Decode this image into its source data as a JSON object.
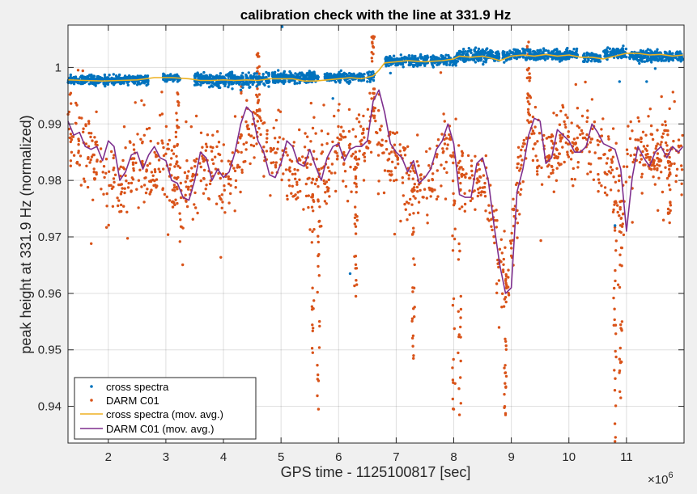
{
  "chart_data": {
    "type": "scatter",
    "title": "calibration check with the line at 331.9 Hz",
    "xlabel": "GPS time - 1125100817 [sec]",
    "ylabel": "peak height at 331.9 Hz (normalized)",
    "x_exponent_label": "×10",
    "x_exponent_power": "6",
    "xlim": [
      1.3,
      12.0
    ],
    "ylim": [
      0.9335,
      1.0075
    ],
    "xticks": [
      2,
      3,
      4,
      5,
      6,
      7,
      8,
      9,
      10,
      11
    ],
    "yticks": [
      0.94,
      0.95,
      0.96,
      0.97,
      0.98,
      0.99,
      1
    ],
    "xtick_labels": [
      "2",
      "3",
      "4",
      "5",
      "6",
      "7",
      "8",
      "9",
      "10",
      "11"
    ],
    "ytick_labels": [
      "0.94",
      "0.95",
      "0.96",
      "0.97",
      "0.98",
      "0.99",
      "1"
    ],
    "grid": true,
    "legend_position": "bottom-left",
    "colors": {
      "cross_spectra": "#0072bd",
      "darm_c01": "#d95319",
      "cross_spectra_avg": "#edb120",
      "darm_c01_avg": "#7e2f8e"
    },
    "series": [
      {
        "name": "cross spectra",
        "style": "points",
        "segments": [
          {
            "from": 1.3,
            "to": 2.7,
            "level": 0.9978,
            "spread": 0.0007
          },
          {
            "from": 2.95,
            "to": 3.25,
            "level": 0.9982,
            "spread": 0.0006
          },
          {
            "from": 3.5,
            "to": 4.8,
            "level": 0.9978,
            "spread": 0.001
          },
          {
            "from": 4.85,
            "to": 5.65,
            "level": 0.9982,
            "spread": 0.0008
          },
          {
            "from": 5.75,
            "to": 6.45,
            "level": 0.9983,
            "spread": 0.0007
          },
          {
            "from": 6.5,
            "to": 6.62,
            "level": 0.9985,
            "spread": 0.0008
          },
          {
            "from": 6.8,
            "to": 7.55,
            "level": 1.0012,
            "spread": 0.0008
          },
          {
            "from": 7.6,
            "to": 8.05,
            "level": 1.0012,
            "spread": 0.0008
          },
          {
            "from": 8.05,
            "to": 8.8,
            "level": 1.0022,
            "spread": 0.0009
          },
          {
            "from": 8.85,
            "to": 10.15,
            "level": 1.0022,
            "spread": 0.0008
          },
          {
            "from": 10.25,
            "to": 10.55,
            "level": 1.0018,
            "spread": 0.0007
          },
          {
            "from": 10.6,
            "to": 11.0,
            "level": 1.0025,
            "spread": 0.0008
          },
          {
            "from": 11.05,
            "to": 11.98,
            "level": 1.002,
            "spread": 0.0008
          }
        ],
        "outliers": [
          [
            2.6,
            0.9975
          ],
          [
            3.5,
            0.9985
          ],
          [
            4.3,
            0.996
          ],
          [
            4.42,
            0.9972
          ],
          [
            5.02,
            1.0072
          ],
          [
            5.28,
            0.9972
          ],
          [
            5.9,
            0.9945
          ],
          [
            6.2,
            0.9635
          ],
          [
            6.5,
            0.9975
          ],
          [
            6.9,
            0.999
          ],
          [
            10.8,
            0.972
          ],
          [
            10.88,
            0.9975
          ],
          [
            11.35,
            0.9975
          ],
          [
            11.5,
            0.9998
          ]
        ]
      },
      {
        "name": "DARM C01",
        "style": "points",
        "anchors": [
          [
            1.3,
            0.99
          ],
          [
            1.45,
            0.988
          ],
          [
            1.6,
            0.986
          ],
          [
            1.8,
            0.984
          ],
          [
            2.0,
            0.98
          ],
          [
            2.2,
            0.979
          ],
          [
            2.4,
            0.982
          ],
          [
            2.6,
            0.983
          ],
          [
            2.8,
            0.981
          ],
          [
            3.0,
            0.984
          ],
          [
            3.2,
            0.978
          ],
          [
            3.4,
            0.977
          ],
          [
            3.6,
            0.982
          ],
          [
            3.8,
            0.983
          ],
          [
            4.0,
            0.98
          ],
          [
            4.2,
            0.982
          ],
          [
            4.45,
            0.989
          ],
          [
            4.6,
            0.991
          ],
          [
            4.8,
            0.983
          ],
          [
            5.0,
            0.985
          ],
          [
            5.2,
            0.98
          ],
          [
            5.4,
            0.984
          ],
          [
            5.6,
            0.983
          ],
          [
            5.8,
            0.981
          ],
          [
            6.0,
            0.986
          ],
          [
            6.2,
            0.984
          ],
          [
            6.45,
            0.987
          ],
          [
            6.6,
            0.992
          ],
          [
            6.8,
            0.986
          ],
          [
            7.0,
            0.983
          ],
          [
            7.2,
            0.981
          ],
          [
            7.4,
            0.978
          ],
          [
            7.6,
            0.979
          ],
          [
            7.8,
            0.987
          ],
          [
            8.0,
            0.985
          ],
          [
            8.2,
            0.979
          ],
          [
            8.4,
            0.981
          ],
          [
            8.6,
            0.978
          ],
          [
            8.8,
            0.967
          ],
          [
            8.95,
            0.962
          ],
          [
            9.1,
            0.979
          ],
          [
            9.3,
            0.991
          ],
          [
            9.5,
            0.983
          ],
          [
            9.7,
            0.986
          ],
          [
            9.9,
            0.987
          ],
          [
            10.1,
            0.984
          ],
          [
            10.3,
            0.988
          ],
          [
            10.5,
            0.985
          ],
          [
            10.7,
            0.983
          ],
          [
            10.9,
            0.974
          ],
          [
            11.05,
            0.985
          ],
          [
            11.3,
            0.985
          ],
          [
            11.5,
            0.984
          ],
          [
            11.7,
            0.986
          ],
          [
            11.98,
            0.985
          ]
        ],
        "extremes": [
          [
            3.2,
            0.9955
          ],
          [
            4.6,
            1.0025
          ],
          [
            5.55,
            0.9495
          ],
          [
            5.65,
            0.9395
          ],
          [
            6.3,
            0.9595
          ],
          [
            6.6,
            1.0055
          ],
          [
            7.3,
            0.9485
          ],
          [
            8.0,
            0.9395
          ],
          [
            8.1,
            0.9385
          ],
          [
            8.9,
            0.9385
          ],
          [
            9.3,
            1.0045
          ],
          [
            10.8,
            0.9335
          ],
          [
            10.9,
            0.9415
          ],
          [
            11.75,
            0.9725
          ]
        ]
      },
      {
        "name": "cross spectra (mov. avg.)",
        "style": "line",
        "x": [
          1.3,
          1.6,
          1.9,
          2.2,
          2.5,
          2.8,
          3.1,
          3.4,
          3.6,
          3.8,
          4.0,
          4.2,
          4.4,
          4.6,
          4.8,
          5.0,
          5.2,
          5.4,
          5.6,
          5.8,
          6.0,
          6.2,
          6.4,
          6.6,
          6.7,
          6.8,
          7.0,
          7.2,
          7.5,
          7.8,
          8.0,
          8.1,
          8.3,
          8.5,
          8.7,
          8.8,
          9.0,
          9.2,
          9.4,
          9.6,
          9.8,
          10.0,
          10.2,
          10.4,
          10.6,
          10.8,
          11.0,
          11.2,
          11.4,
          11.6,
          11.8,
          11.98
        ],
        "y": [
          0.9978,
          0.9977,
          0.9976,
          0.9977,
          0.9978,
          0.9982,
          0.9982,
          0.998,
          0.9977,
          0.9977,
          0.9978,
          0.9977,
          0.9978,
          0.9977,
          0.998,
          0.998,
          0.998,
          0.9976,
          0.9976,
          0.9978,
          0.998,
          0.9982,
          0.998,
          0.9985,
          0.9995,
          1.0008,
          1.001,
          1.0012,
          1.001,
          1.0012,
          1.0015,
          1.002,
          1.0018,
          1.002,
          1.0015,
          1.0012,
          1.002,
          1.0022,
          1.002,
          1.0023,
          1.002,
          1.0022,
          1.0018,
          1.0018,
          1.0015,
          1.002,
          1.0025,
          1.0025,
          1.0022,
          1.0023,
          1.002,
          1.0022
        ]
      },
      {
        "name": "DARM C01 (mov. avg.)",
        "style": "line",
        "x": [
          1.3,
          1.4,
          1.5,
          1.6,
          1.7,
          1.8,
          1.9,
          2.0,
          2.1,
          2.2,
          2.3,
          2.4,
          2.5,
          2.6,
          2.7,
          2.8,
          2.9,
          3.0,
          3.1,
          3.2,
          3.3,
          3.4,
          3.5,
          3.6,
          3.7,
          3.8,
          3.9,
          4.0,
          4.1,
          4.2,
          4.3,
          4.4,
          4.5,
          4.6,
          4.7,
          4.8,
          4.9,
          5.0,
          5.1,
          5.2,
          5.3,
          5.4,
          5.5,
          5.6,
          5.7,
          5.8,
          5.9,
          6.0,
          6.1,
          6.2,
          6.3,
          6.4,
          6.5,
          6.6,
          6.7,
          6.8,
          6.9,
          7.0,
          7.1,
          7.2,
          7.3,
          7.4,
          7.5,
          7.6,
          7.7,
          7.8,
          7.9,
          8.0,
          8.1,
          8.2,
          8.3,
          8.4,
          8.5,
          8.6,
          8.7,
          8.8,
          8.9,
          9.0,
          9.1,
          9.2,
          9.3,
          9.4,
          9.5,
          9.6,
          9.7,
          9.8,
          9.9,
          10.0,
          10.1,
          10.2,
          10.3,
          10.4,
          10.5,
          10.6,
          10.7,
          10.8,
          10.9,
          11.0,
          11.1,
          11.2,
          11.3,
          11.4,
          11.5,
          11.6,
          11.7,
          11.8,
          11.9,
          11.98
        ],
        "y": [
          0.9905,
          0.988,
          0.9885,
          0.986,
          0.9855,
          0.986,
          0.9835,
          0.987,
          0.986,
          0.98,
          0.9815,
          0.9845,
          0.985,
          0.982,
          0.9845,
          0.986,
          0.984,
          0.9835,
          0.98,
          0.9795,
          0.977,
          0.9765,
          0.98,
          0.985,
          0.984,
          0.98,
          0.982,
          0.9805,
          0.9815,
          0.985,
          0.99,
          0.993,
          0.992,
          0.987,
          0.985,
          0.981,
          0.9805,
          0.983,
          0.987,
          0.986,
          0.983,
          0.9825,
          0.9855,
          0.9825,
          0.98,
          0.984,
          0.986,
          0.9865,
          0.9835,
          0.9855,
          0.986,
          0.986,
          0.987,
          0.994,
          0.996,
          0.992,
          0.9865,
          0.985,
          0.984,
          0.9815,
          0.9835,
          0.9795,
          0.9805,
          0.982,
          0.9855,
          0.987,
          0.99,
          0.9865,
          0.9775,
          0.977,
          0.977,
          0.983,
          0.984,
          0.98,
          0.972,
          0.965,
          0.96,
          0.961,
          0.978,
          0.982,
          0.988,
          0.991,
          0.9905,
          0.983,
          0.984,
          0.989,
          0.988,
          0.987,
          0.985,
          0.985,
          0.986,
          0.99,
          0.9885,
          0.9865,
          0.986,
          0.9855,
          0.982,
          0.971,
          0.9805,
          0.986,
          0.984,
          0.9825,
          0.985,
          0.986,
          0.984,
          0.986,
          0.985,
          0.986
        ]
      }
    ]
  }
}
